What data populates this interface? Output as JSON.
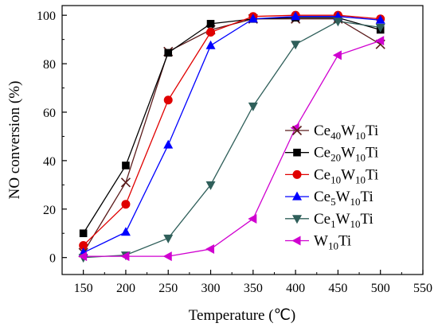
{
  "chart_data": {
    "type": "line",
    "xlabel": "Temperature (℃)",
    "ylabel": "NO conversion (%)",
    "xlim": [
      125,
      550
    ],
    "ylim": [
      -7,
      104
    ],
    "xticks": [
      150,
      200,
      250,
      300,
      350,
      400,
      450,
      500,
      550
    ],
    "yticks": [
      0,
      20,
      40,
      60,
      80,
      100
    ],
    "legend_position": "right",
    "x": [
      150,
      200,
      250,
      300,
      350,
      400,
      450,
      500
    ],
    "series": [
      {
        "name": "Ce40W10Ti",
        "label_html": {
          "base": "Ce",
          "sub1": "40",
          "mid": "W",
          "sub2": "10",
          "end": "Ti"
        },
        "marker": "x",
        "color": "#5a1a1a",
        "values": [
          2,
          31,
          85,
          94,
          98.5,
          98.5,
          98.5,
          88
        ]
      },
      {
        "name": "Ce20W10Ti",
        "label_html": {
          "base": "Ce",
          "sub1": "20",
          "mid": "W",
          "sub2": "10",
          "end": "Ti"
        },
        "marker": "square",
        "color": "#000000",
        "values": [
          10,
          38,
          84.5,
          96.5,
          98.5,
          99,
          99,
          94
        ]
      },
      {
        "name": "Ce10W10Ti",
        "label_html": {
          "base": "Ce",
          "sub1": "10",
          "mid": "W",
          "sub2": "10",
          "end": "Ti"
        },
        "marker": "circle",
        "color": "#e00000",
        "values": [
          5,
          22,
          65,
          93,
          99.5,
          100,
          100,
          98.5
        ]
      },
      {
        "name": "Ce5W10Ti",
        "label_html": {
          "base": "Ce",
          "sub1": "5",
          "mid": "W",
          "sub2": "10",
          "end": "Ti"
        },
        "marker": "triangle-up",
        "color": "#0000ff",
        "values": [
          2,
          10.5,
          46.5,
          87.5,
          98.5,
          99.5,
          99.5,
          98
        ]
      },
      {
        "name": "Ce1W10Ti",
        "label_html": {
          "base": "Ce",
          "sub1": "1",
          "mid": "W",
          "sub2": "10",
          "end": "Ti"
        },
        "marker": "triangle-down",
        "color": "#2f5f5a",
        "values": [
          0,
          1,
          8,
          30,
          62.5,
          88,
          97.5,
          95
        ]
      },
      {
        "name": "W10Ti",
        "label_html": {
          "base": "W",
          "sub1": "10",
          "mid": "",
          "sub2": "",
          "end": "Ti"
        },
        "marker": "triangle-left",
        "color": "#d000d0",
        "values": [
          0.5,
          0.5,
          0.5,
          3.5,
          16,
          53.5,
          83.5,
          89.5
        ]
      }
    ]
  }
}
